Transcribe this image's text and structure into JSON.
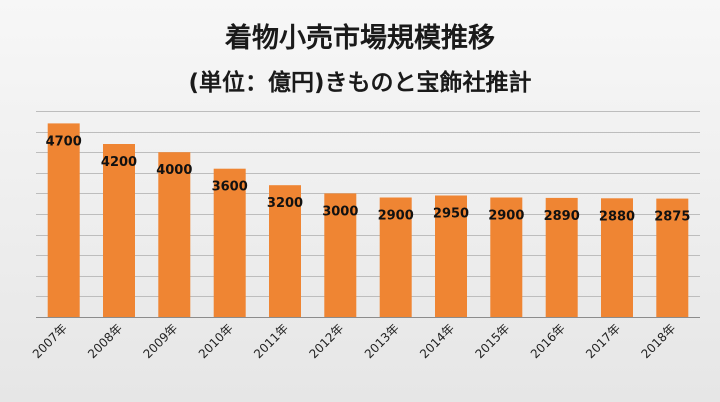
{
  "chart_data": {
    "type": "bar",
    "title": "着物小売市場規模推移",
    "subtitle": "(単位：億円)きものと宝飾社推計",
    "categories": [
      "2007年",
      "2008年",
      "2009年",
      "2010年",
      "2011年",
      "2012年",
      "2013年",
      "2014年",
      "2015年",
      "2016年",
      "2017年",
      "2018年"
    ],
    "values": [
      4700,
      4200,
      4000,
      3600,
      3200,
      3000,
      2900,
      2950,
      2900,
      2890,
      2880,
      2875
    ],
    "data_labels": [
      "4700",
      "4200",
      "4000",
      "3600",
      "3200",
      "3000",
      "2900",
      "2950",
      "2900",
      "2890",
      "2880",
      "2875"
    ],
    "xlabel": "",
    "ylabel": "",
    "ylim": [
      0,
      5000
    ],
    "grid": true,
    "legend": "none",
    "bar_color": "#ef8533"
  }
}
